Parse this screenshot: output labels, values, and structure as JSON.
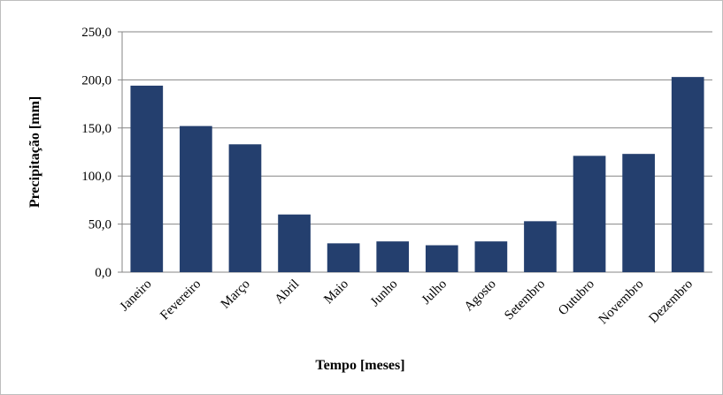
{
  "chart_data": {
    "type": "bar",
    "x_label": "Tempo [meses]",
    "y_label": "Precipitação [mm]",
    "categories": [
      "Janeiro",
      "Fevereiro",
      "Março",
      "Abril",
      "Maio",
      "Junho",
      "Julho",
      "Agosto",
      "Setembro",
      "Outubro",
      "Novembro",
      "Dezembro"
    ],
    "values": [
      194,
      152,
      133,
      60,
      30,
      32,
      28,
      32,
      53,
      121,
      123,
      203
    ],
    "color": "#243f6e",
    "ylim": [
      0,
      250
    ],
    "yticks": [
      {
        "value": 0,
        "label": "0,0"
      },
      {
        "value": 50,
        "label": "50,0"
      },
      {
        "value": 100,
        "label": "100,0"
      },
      {
        "value": 150,
        "label": "150,0"
      },
      {
        "value": 200,
        "label": "200,0"
      },
      {
        "value": 250,
        "label": "250,0"
      }
    ],
    "grid": true
  }
}
